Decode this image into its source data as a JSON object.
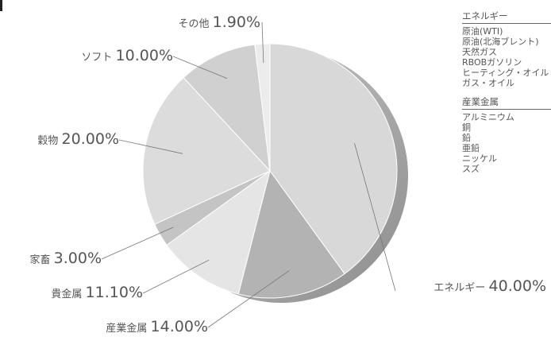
{
  "chart_data": {
    "type": "pie",
    "slices": [
      {
        "label": "エネルギー",
        "value": 40.0,
        "text": "40.00%",
        "color": "#d8d8d8"
      },
      {
        "label": "産業金属",
        "value": 14.0,
        "text": "14.00%",
        "color": "#b3b3b3"
      },
      {
        "label": "貴金属",
        "value": 11.1,
        "text": "11.10%",
        "color": "#e5e5e5"
      },
      {
        "label": "家畜",
        "value": 3.0,
        "text": "3.00%",
        "color": "#c4c4c4"
      },
      {
        "label": "穀物",
        "value": 20.0,
        "text": "20.00%",
        "color": "#dcdcdc"
      },
      {
        "label": "ソフト",
        "value": 10.0,
        "text": "10.00%",
        "color": "#d0d0d0"
      },
      {
        "label": "その他",
        "value": 1.9,
        "text": "1.90%",
        "color": "#ececec"
      }
    ],
    "legend": {
      "placement": "right",
      "groups": [
        {
          "heading": "エネルギー",
          "items": [
            "原油(WTI)",
            "原油(北海ブレント)",
            "天然ガス",
            "RBOBガソリン",
            "ヒーティング・オイル",
            "ガス・オイル"
          ]
        },
        {
          "heading": "産業金属",
          "items": [
            "アルミニウム",
            "銅",
            "鉛",
            "亜鉛",
            "ニッケル",
            "スズ"
          ]
        }
      ]
    },
    "style": {
      "label_color": "#555555",
      "leader_color": "#777777",
      "shadow_color": "#8c8c8c"
    }
  }
}
